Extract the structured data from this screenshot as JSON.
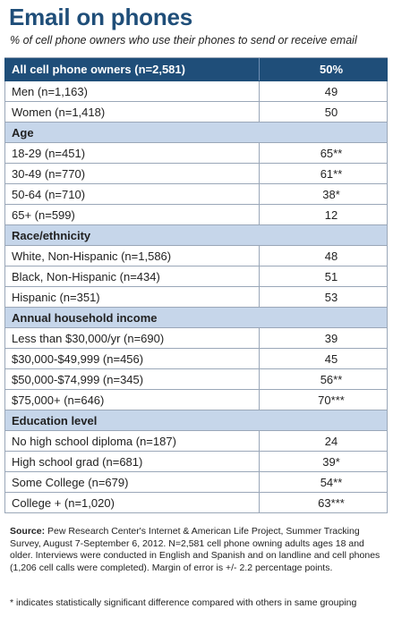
{
  "title": "Email on phones",
  "subtitle": "% of cell phone owners who use their phones to send or receive email",
  "total": {
    "label": "All cell phone owners (n=2,581)",
    "value": "50%"
  },
  "groups": [
    {
      "heading": "",
      "rows": [
        {
          "label": "Men (n=1,163)",
          "value": "49"
        },
        {
          "label": "Women (n=1,418)",
          "value": "50"
        }
      ]
    },
    {
      "heading": "Age",
      "rows": [
        {
          "label": "18-29 (n=451)",
          "value": "65**"
        },
        {
          "label": "30-49 (n=770)",
          "value": "61**"
        },
        {
          "label": "50-64 (n=710)",
          "value": "38*"
        },
        {
          "label": "65+ (n=599)",
          "value": "12"
        }
      ]
    },
    {
      "heading": "Race/ethnicity",
      "rows": [
        {
          "label": "White, Non-Hispanic (n=1,586)",
          "value": "48"
        },
        {
          "label": "Black, Non-Hispanic (n=434)",
          "value": "51"
        },
        {
          "label": "Hispanic (n=351)",
          "value": "53"
        }
      ]
    },
    {
      "heading": "Annual household income",
      "rows": [
        {
          "label": "Less than $30,000/yr (n=690)",
          "value": "39"
        },
        {
          "label": "$30,000-$49,999 (n=456)",
          "value": "45"
        },
        {
          "label": "$50,000-$74,999 (n=345)",
          "value": "56**"
        },
        {
          "label": "$75,000+ (n=646)",
          "value": "70***"
        }
      ]
    },
    {
      "heading": "Education level",
      "rows": [
        {
          "label": "No high school diploma (n=187)",
          "value": "24"
        },
        {
          "label": "High school grad (n=681)",
          "value": "39*"
        },
        {
          "label": "Some College (n=679)",
          "value": "54**"
        },
        {
          "label": "College + (n=1,020)",
          "value": "63***"
        }
      ]
    }
  ],
  "source_label": "Source:",
  "source_text": "Pew Research Center's Internet & American Life Project, Summer Tracking Survey, August 7-September 6, 2012. N=2,581 cell phone owning adults ages 18 and older. Interviews were conducted in English and Spanish and on landline and cell phones (1,206 cell calls were completed). Margin of error is +/- 2.2 percentage points.",
  "footnote": "* indicates statistically significant difference compared with others in same grouping"
}
